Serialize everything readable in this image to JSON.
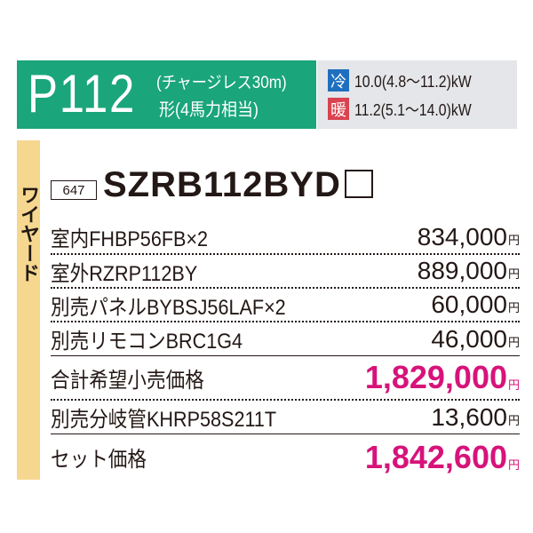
{
  "header": {
    "model_code": "P112",
    "subtitle_line1": "(チャージレス30m)",
    "subtitle_line2": "形(4馬力相当)",
    "cooling": {
      "tag": "冷",
      "value": "10.0(4.8～11.2)kW",
      "color": "#1f6fbf"
    },
    "heating": {
      "tag": "暖",
      "value": "11.2(5.1～14.0)kW",
      "color": "#d9434f"
    }
  },
  "side_label": "ワイヤード",
  "page_ref": "647",
  "set_model": "SZRB112BYD",
  "rows": [
    {
      "label": "室内FHBP56FB×2",
      "price": "834,000",
      "unit": "円"
    },
    {
      "label": "室外RZRP112BY",
      "price": "889,000",
      "unit": "円"
    },
    {
      "label": "別売パネルBYBSJ56LAF×2",
      "price": "60,000",
      "unit": "円"
    },
    {
      "label": "別売リモコンBRC1G4",
      "price": "46,000",
      "unit": "円"
    },
    {
      "label": "合計希望小売価格",
      "price": "1,829,000",
      "unit": "円"
    },
    {
      "label": "別売分岐管KHRP58S211T",
      "price": "13,600",
      "unit": "円"
    },
    {
      "label": "セット価格",
      "price": "1,842,600",
      "unit": "円"
    }
  ]
}
